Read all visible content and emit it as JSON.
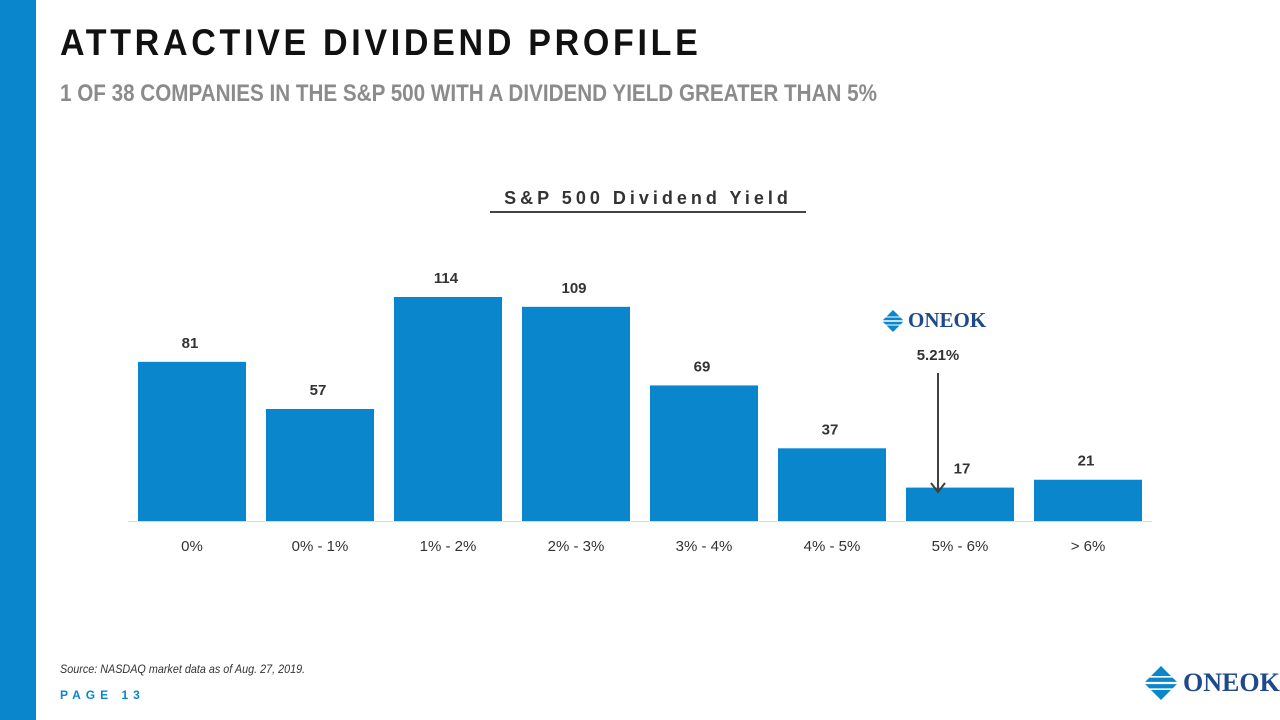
{
  "header": {
    "title": "ATTRACTIVE DIVIDEND PROFILE",
    "subtitle": "1 OF 38 COMPANIES IN THE S&P 500 WITH A DIVIDEND YIELD GREATER THAN 5%"
  },
  "chart_data": {
    "type": "bar",
    "title": "S&P 500 Dividend Yield",
    "categories": [
      "0%",
      "0% - 1%",
      "1% - 2%",
      "2% - 3%",
      "3% - 4%",
      "4% - 5%",
      "5% - 6%",
      "> 6%"
    ],
    "values": [
      81,
      57,
      114,
      109,
      69,
      37,
      17,
      21
    ],
    "xlabel": "",
    "ylabel": "",
    "ylim": [
      0,
      130
    ],
    "grid": false,
    "annotation": {
      "label": "5.21%",
      "category": "5% - 6%"
    }
  },
  "logo": {
    "text": "ONEOK"
  },
  "footer": {
    "source": "Source: NASDAQ market data as of Aug. 27, 2019.",
    "page": "PAGE 13"
  },
  "colors": {
    "accent": "#0a86cd",
    "bar": "#0a86cd",
    "title": "#111111",
    "subtitle": "#8b8b8b",
    "logo": "#1e4a8c"
  }
}
